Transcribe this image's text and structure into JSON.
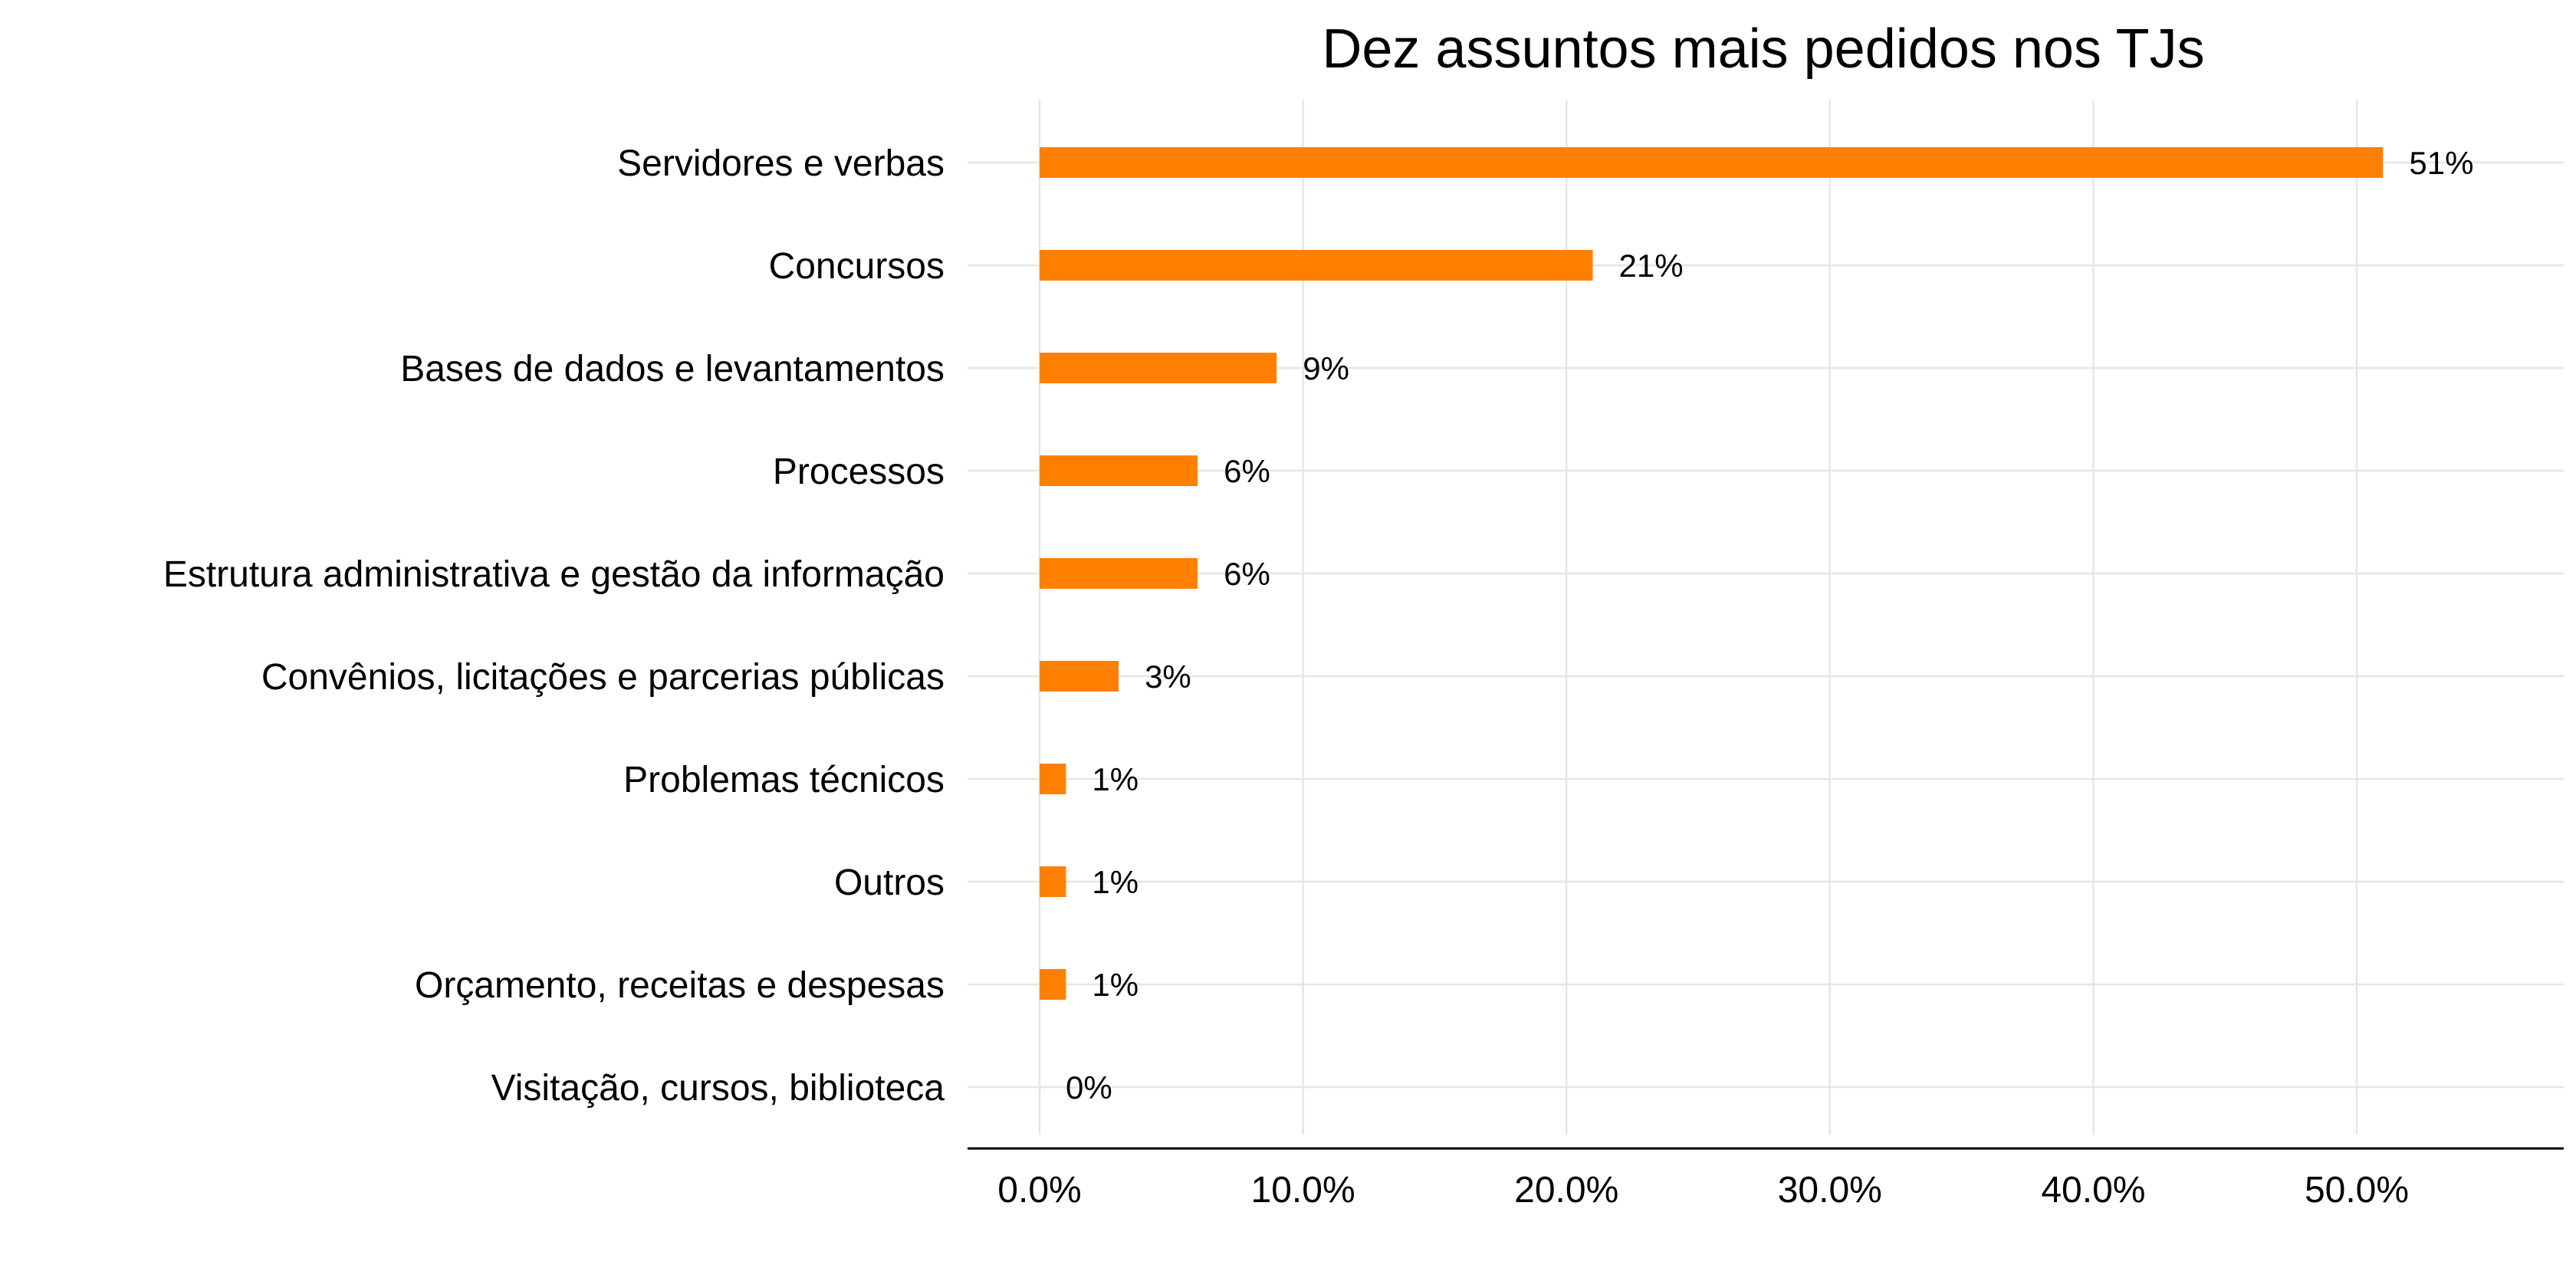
{
  "chart_data": {
    "type": "bar",
    "orientation": "horizontal",
    "title": "Dez assuntos mais pedidos nos TJs",
    "xlabel": "",
    "ylabel": "",
    "categories": [
      "Servidores e verbas",
      "Concursos",
      "Bases de dados e levantamentos",
      "Processos",
      "Estrutura administrativa e gestão da informação",
      "Convênios, licitações e parcerias públicas",
      "Problemas técnicos",
      "Outros",
      "Orçamento, receitas e despesas",
      "Visitação, cursos, biblioteca"
    ],
    "values": [
      51,
      21,
      9,
      6,
      6,
      3,
      1,
      1,
      1,
      0
    ],
    "data_labels": [
      "51%",
      "21%",
      "9%",
      "6%",
      "6%",
      "3%",
      "1%",
      "1%",
      "1%",
      "0%"
    ],
    "xlim": [
      0,
      57
    ],
    "x_ticks": [
      0,
      10,
      20,
      30,
      40,
      50
    ],
    "x_tick_labels": [
      "0.0%",
      "10.0%",
      "20.0%",
      "30.0%",
      "40.0%",
      "50.0%"
    ],
    "grid": true,
    "legend": "none",
    "bar_color": "#ff8000"
  }
}
